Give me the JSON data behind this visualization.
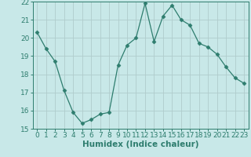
{
  "x": [
    0,
    1,
    2,
    3,
    4,
    5,
    6,
    7,
    8,
    9,
    10,
    11,
    12,
    13,
    14,
    15,
    16,
    17,
    18,
    19,
    20,
    21,
    22,
    23
  ],
  "y": [
    20.3,
    19.4,
    18.7,
    17.1,
    15.9,
    15.3,
    15.5,
    15.8,
    15.9,
    18.5,
    19.6,
    20.0,
    21.9,
    19.8,
    21.2,
    21.8,
    21.0,
    20.7,
    19.7,
    19.5,
    19.1,
    18.4,
    17.8,
    17.5
  ],
  "line_color": "#2e7d6e",
  "marker": "D",
  "marker_size": 2.5,
  "bg_color": "#c8e8e8",
  "grid_major_color": "#b0cccc",
  "grid_minor_color": "#c0d8d8",
  "xlabel": "Humidex (Indice chaleur)",
  "ylim": [
    15,
    22
  ],
  "xlim": [
    -0.5,
    23.5
  ],
  "yticks": [
    15,
    16,
    17,
    18,
    19,
    20,
    21,
    22
  ],
  "xticks": [
    0,
    1,
    2,
    3,
    4,
    5,
    6,
    7,
    8,
    9,
    10,
    11,
    12,
    13,
    14,
    15,
    16,
    17,
    18,
    19,
    20,
    21,
    22,
    23
  ],
  "tick_fontsize": 6.5,
  "label_fontsize": 7.5,
  "tick_color": "#2e7d6e",
  "spine_color": "#2e7d6e"
}
